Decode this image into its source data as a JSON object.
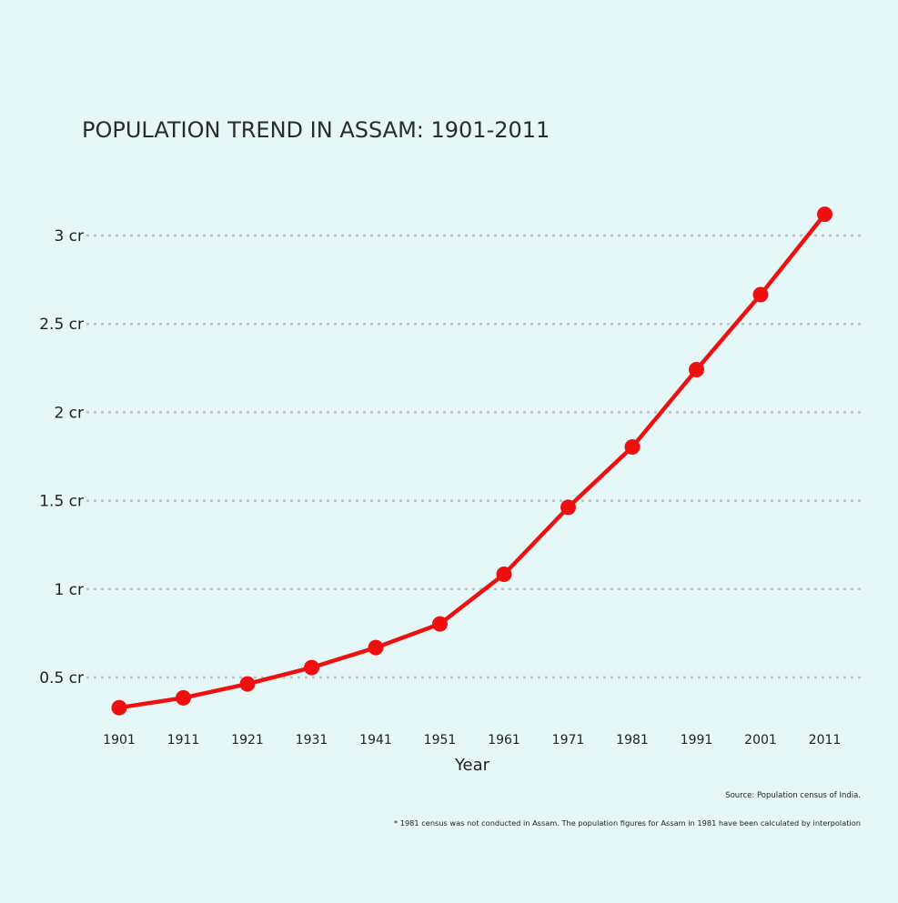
{
  "chart_data": {
    "type": "line",
    "title": "POPULATION TREND IN ASSAM: 1901-2011",
    "xlabel": "Year",
    "ylabel": "",
    "categories": [
      "1901",
      "1911",
      "1921",
      "1931",
      "1941",
      "1951",
      "1961",
      "1971",
      "1981",
      "1991",
      "2001",
      "2011"
    ],
    "series": [
      {
        "name": "",
        "values": [
          3289680,
          3848617,
          4636980,
          5560371,
          6694790,
          8028856,
          10837329,
          14625152,
          18041248,
          22414322,
          26655528,
          31205576
        ]
      }
    ],
    "y_ticks": [
      {
        "value": 5000000,
        "label": "0.5 cr"
      },
      {
        "value": 10000000,
        "label": "1 cr"
      },
      {
        "value": 15000000,
        "label": "1.5 cr"
      },
      {
        "value": 20000000,
        "label": "2 cr"
      },
      {
        "value": 25000000,
        "label": "2.5 cr"
      },
      {
        "value": 30000000,
        "label": "3 cr"
      }
    ],
    "ylim": [
      2900000,
      32600000
    ],
    "grid": "horizontal dotted",
    "legend": "none",
    "colors": {
      "series": "#ee0f0f",
      "background": "#e6f7f7",
      "grid": "#b9c2c4",
      "text": "#222222"
    },
    "source": "Source: Population census of India.",
    "footnote": "* 1981 census was not conducted in Assam. The population figures for Assam in 1981 have been calculated by interpolation"
  }
}
